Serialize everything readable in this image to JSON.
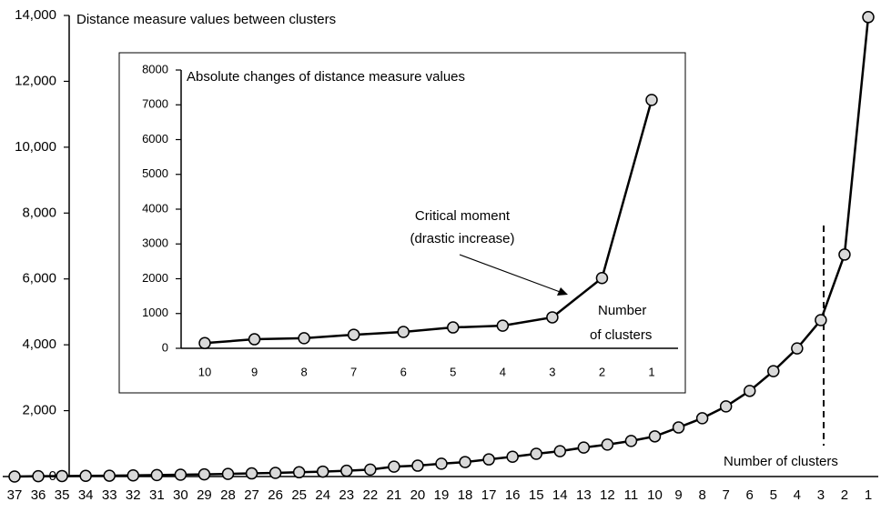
{
  "chart_data": [
    {
      "type": "line",
      "title": "Distance measure values between clusters",
      "xlabel": "Number of clusters",
      "categories": [
        "37",
        "36",
        "35",
        "34",
        "33",
        "32",
        "31",
        "30",
        "29",
        "28",
        "27",
        "26",
        "25",
        "24",
        "23",
        "22",
        "21",
        "20",
        "19",
        "18",
        "17",
        "16",
        "15",
        "14",
        "13",
        "12",
        "11",
        "10",
        "9",
        "8",
        "7",
        "6",
        "5",
        "4",
        "3",
        "2",
        "1"
      ],
      "values": [
        0,
        10,
        15,
        20,
        25,
        35,
        45,
        55,
        65,
        80,
        95,
        110,
        130,
        150,
        175,
        210,
        300,
        330,
        390,
        440,
        520,
        600,
        690,
        770,
        880,
        970,
        1080,
        1220,
        1490,
        1770,
        2130,
        2600,
        3200,
        3890,
        4750,
        6740,
        13950
      ],
      "color": "#000000",
      "ylim": [
        0,
        14000
      ],
      "yticks": [
        0,
        {
          "value": 2000,
          "label": "2,000"
        },
        {
          "value": 4000,
          "label": "4,000"
        },
        {
          "value": 6000,
          "label": "6,000"
        },
        {
          "value": 8000,
          "label": "8,000"
        },
        {
          "value": 10000,
          "label": "10,000"
        },
        {
          "value": 12000,
          "label": "12,000"
        },
        {
          "value": 14000,
          "label": "14,000"
        }
      ],
      "grid": false
    },
    {
      "type": "line",
      "title": "Absolute changes of distance measure values",
      "xlabel": [
        "Number",
        "of clusters"
      ],
      "annotation": [
        "Critical moment",
        "(drastic increase)"
      ],
      "categories": [
        "10",
        "9",
        "8",
        "7",
        "6",
        "5",
        "4",
        "3",
        "2",
        "1"
      ],
      "values": [
        150,
        260,
        290,
        390,
        470,
        600,
        650,
        890,
        2020,
        7140
      ],
      "color": "#000000",
      "ylim": [
        0,
        8000
      ],
      "yticks": [
        0,
        1000,
        2000,
        3000,
        4000,
        5000,
        6000,
        7000,
        8000
      ],
      "grid": false
    }
  ]
}
